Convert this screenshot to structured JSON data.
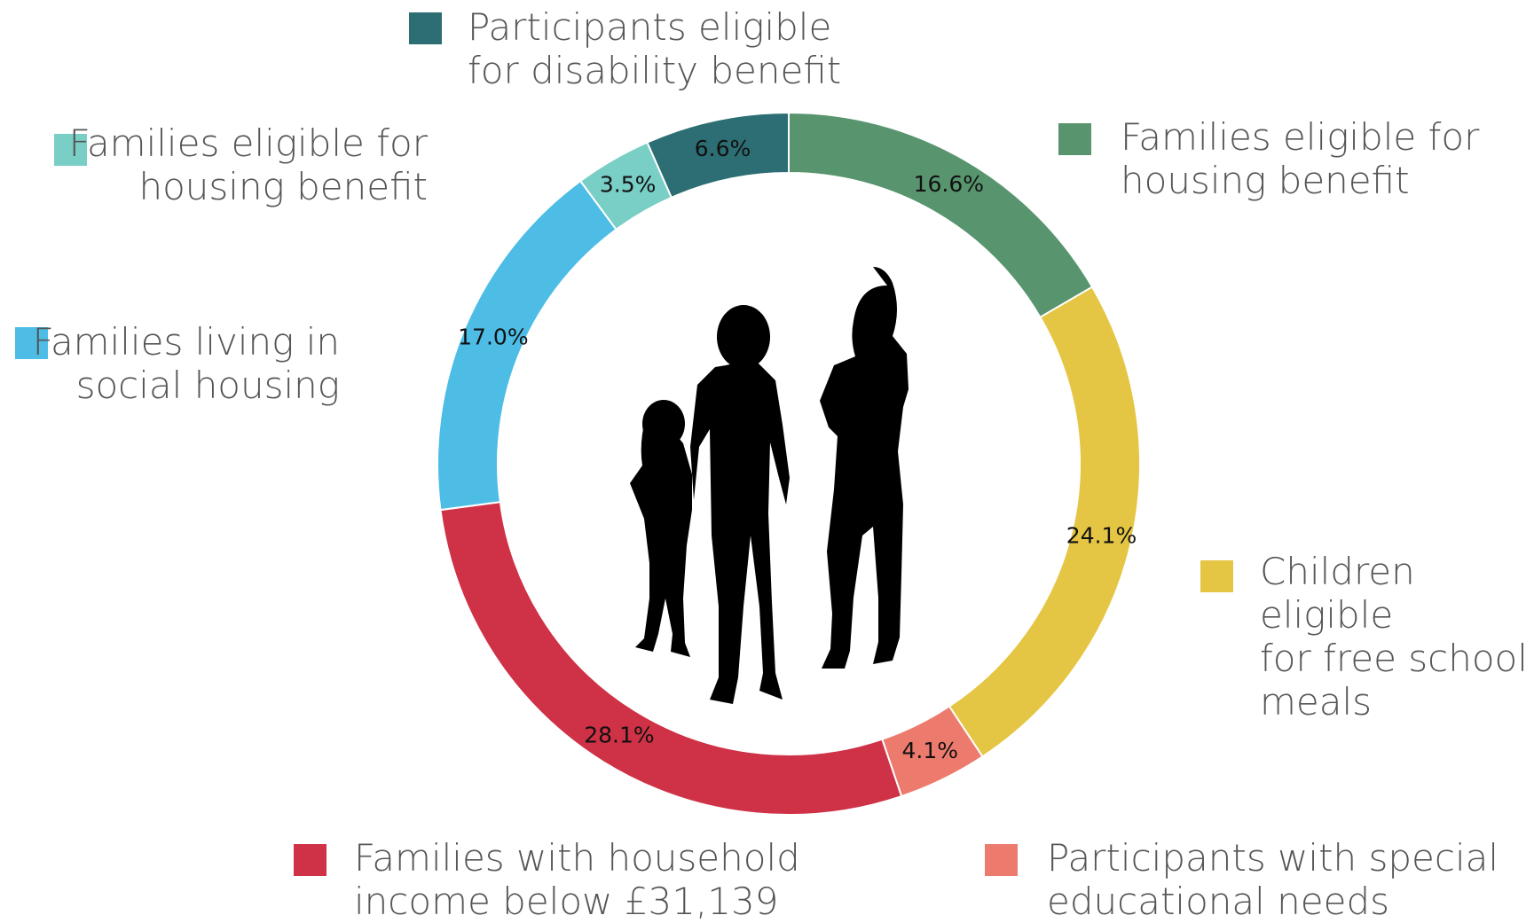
{
  "chart_data": {
    "type": "pie",
    "categories": [
      "Families eligible for\nhousing benefit",
      "Children eligible\nfor free school\nmeals",
      "Participants with special\neducational needs",
      "Families with household\nincome below £31,139",
      "Families living in\nsocial housing",
      "Families eligible for\nhousing benefit",
      "Participants eligible\nfor disability benefit"
    ],
    "values": [
      16.6,
      24.1,
      4.1,
      28.1,
      17.0,
      3.5,
      6.6
    ],
    "value_labels": [
      "16.6%",
      "24.1%",
      "4.1%",
      "28.1%",
      "17.0%",
      "3.5%",
      "6.6%"
    ],
    "colors": [
      "#58956f",
      "#e5c644",
      "#ec7b6e",
      "#cf3146",
      "#4dbde6",
      "#79cec6",
      "#2c6e73"
    ]
  }
}
